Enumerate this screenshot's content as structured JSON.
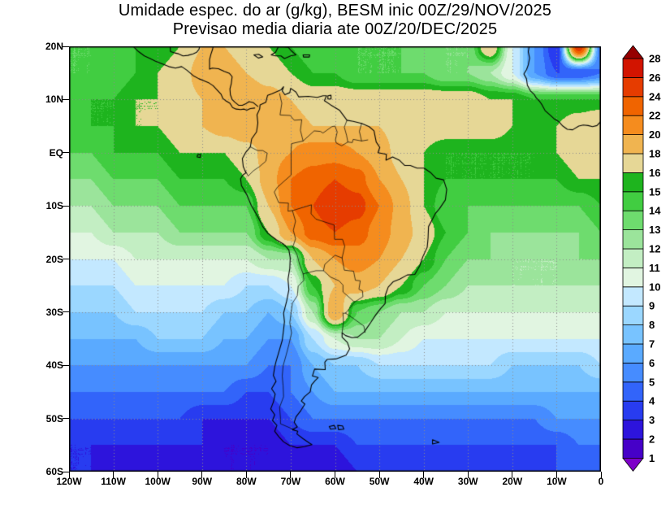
{
  "title": {
    "line1": "Umidade espec. do ar (g/kg), BESM inic 00Z/29/NOV/2025",
    "line2": "Previsao media diaria ate 00Z/20/DEC/2025"
  },
  "axes": {
    "lat_ticks": [
      "20N",
      "10N",
      "EQ",
      "10S",
      "20S",
      "30S",
      "40S",
      "50S",
      "60S"
    ],
    "lon_ticks": [
      "120W",
      "110W",
      "100W",
      "90W",
      "80W",
      "70W",
      "60W",
      "50W",
      "40W",
      "30W",
      "20W",
      "10W",
      "0"
    ]
  },
  "colorbar": {
    "labels": [
      "28",
      "26",
      "24",
      "22",
      "20",
      "18",
      "16",
      "15",
      "14",
      "13",
      "12",
      "11",
      "10",
      "9",
      "8",
      "7",
      "6",
      "5",
      "4",
      "3",
      "2",
      "1"
    ]
  },
  "chart_data": {
    "type": "heatmap",
    "title": "Umidade espec. do ar (g/kg), BESM inic 00Z/29/NOV/2025",
    "subtitle": "Previsao media diaria ate 00Z/20/DEC/2025",
    "variable": "specific humidity of air",
    "units": "g/kg",
    "model": "BESM",
    "init_time": "00Z/29/NOV/2025",
    "valid_until": "00Z/20/DEC/2025",
    "lon_range": [
      -120,
      0
    ],
    "lat_range": [
      -60,
      20
    ],
    "grid_on": true,
    "legend_position": "right",
    "levels": [
      1,
      2,
      3,
      4,
      5,
      6,
      7,
      8,
      9,
      10,
      11,
      12,
      13,
      14,
      15,
      16,
      18,
      20,
      22,
      24,
      26,
      28
    ],
    "palette_low_to_high": [
      "#7d00c8",
      "#4600c8",
      "#2d14dc",
      "#283cf0",
      "#3264fa",
      "#468cff",
      "#5aaaff",
      "#78c3ff",
      "#9bd7ff",
      "#c3e8ff",
      "#e1f5e1",
      "#c3eec3",
      "#9be49b",
      "#6edc6e",
      "#41cd41",
      "#1eb41e",
      "#e6d796",
      "#f0b450",
      "#f58c1e",
      "#f06400",
      "#e63c00",
      "#d21400",
      "#960000"
    ],
    "lons": [
      -120,
      -115,
      -110,
      -105,
      -100,
      -95,
      -90,
      -85,
      -80,
      -75,
      -70,
      -65,
      -60,
      -55,
      -50,
      -45,
      -40,
      -35,
      -30,
      -25,
      -20,
      -15,
      -10,
      -5,
      0
    ],
    "lats": [
      20,
      15,
      10,
      5,
      0,
      -5,
      -10,
      -15,
      -20,
      -25,
      -30,
      -35,
      -40,
      -45,
      -50,
      -55,
      -60
    ],
    "values_g_per_kg": [
      [
        14,
        14,
        15,
        15,
        15,
        16,
        18,
        18,
        16,
        16,
        15,
        14,
        14,
        14,
        14,
        14,
        13,
        13,
        13,
        18,
        10,
        6,
        3,
        26,
        5
      ],
      [
        14,
        14,
        14,
        15,
        16,
        17,
        19,
        20,
        18,
        17,
        16,
        15,
        15,
        14,
        14,
        14,
        14,
        13,
        13,
        12,
        10,
        6,
        4,
        4,
        5
      ],
      [
        14,
        15,
        15,
        16,
        16,
        17,
        18,
        20,
        20,
        19,
        18,
        17,
        17,
        17,
        17,
        17,
        17,
        17,
        17,
        16,
        16,
        15,
        15,
        15,
        15
      ],
      [
        15,
        15,
        15,
        16,
        16,
        17,
        18,
        19,
        20,
        20,
        19,
        18,
        18,
        18,
        18,
        17,
        17,
        17,
        17,
        17,
        16,
        16,
        16,
        17,
        18
      ],
      [
        14,
        14,
        15,
        15,
        15,
        16,
        16,
        16,
        17,
        19,
        20,
        21,
        21,
        20,
        19,
        17,
        16,
        15,
        15,
        15,
        15,
        15,
        16,
        17,
        18
      ],
      [
        13,
        13,
        14,
        14,
        14,
        15,
        15,
        15,
        16,
        19,
        22,
        23,
        24,
        23,
        20,
        18,
        16,
        15,
        15,
        15,
        15,
        15,
        15,
        16,
        16
      ],
      [
        12,
        12,
        13,
        13,
        13,
        14,
        14,
        14,
        14,
        18,
        22,
        24,
        26,
        25,
        22,
        19,
        16,
        14,
        14,
        14,
        14,
        14,
        14,
        14,
        15
      ],
      [
        11,
        11,
        12,
        12,
        12,
        13,
        13,
        13,
        13,
        16,
        20,
        23,
        24,
        23,
        21,
        19,
        17,
        15,
        14,
        13,
        13,
        13,
        13,
        13,
        14
      ],
      [
        10,
        10,
        10,
        11,
        11,
        11,
        11,
        11,
        11,
        12,
        12,
        18,
        20,
        21,
        20,
        18,
        16,
        14,
        13,
        13,
        12,
        12,
        12,
        13,
        13
      ],
      [
        9,
        9,
        9,
        10,
        10,
        10,
        10,
        10,
        9,
        9,
        10,
        15,
        18,
        19,
        18,
        16,
        14,
        13,
        12,
        12,
        12,
        12,
        12,
        12,
        12
      ],
      [
        8,
        8,
        8,
        9,
        9,
        9,
        9,
        8,
        8,
        7,
        8,
        12,
        20,
        14,
        13,
        12,
        12,
        11,
        11,
        11,
        11,
        11,
        11,
        11,
        11
      ],
      [
        7,
        7,
        7,
        7,
        8,
        8,
        8,
        7,
        7,
        6,
        6,
        9,
        11,
        12,
        12,
        11,
        10,
        10,
        10,
        10,
        10,
        10,
        10,
        10,
        10
      ],
      [
        6,
        6,
        6,
        6,
        6,
        6,
        6,
        6,
        6,
        5,
        5,
        7,
        8,
        8,
        9,
        9,
        9,
        9,
        9,
        9,
        8,
        8,
        8,
        8,
        9
      ],
      [
        5,
        5,
        5,
        5,
        5,
        5,
        5,
        5,
        4,
        4,
        5,
        6,
        7,
        7,
        7,
        7,
        7,
        7,
        7,
        7,
        7,
        7,
        7,
        7,
        7
      ],
      [
        4,
        4,
        4,
        4,
        4,
        4,
        3,
        3,
        3,
        3,
        4,
        5,
        5,
        5,
        5,
        5,
        5,
        5,
        5,
        5,
        5,
        5,
        6,
        6,
        6
      ],
      [
        3,
        3,
        3,
        3,
        3,
        3,
        3,
        2,
        2,
        2,
        3,
        3,
        3,
        4,
        4,
        4,
        4,
        4,
        4,
        4,
        4,
        4,
        4,
        5,
        5
      ],
      [
        3,
        3,
        2,
        2,
        2,
        2,
        2,
        2,
        2,
        2,
        2,
        2,
        2,
        3,
        3,
        3,
        3,
        3,
        3,
        3,
        3,
        3,
        4,
        4,
        4
      ]
    ]
  }
}
